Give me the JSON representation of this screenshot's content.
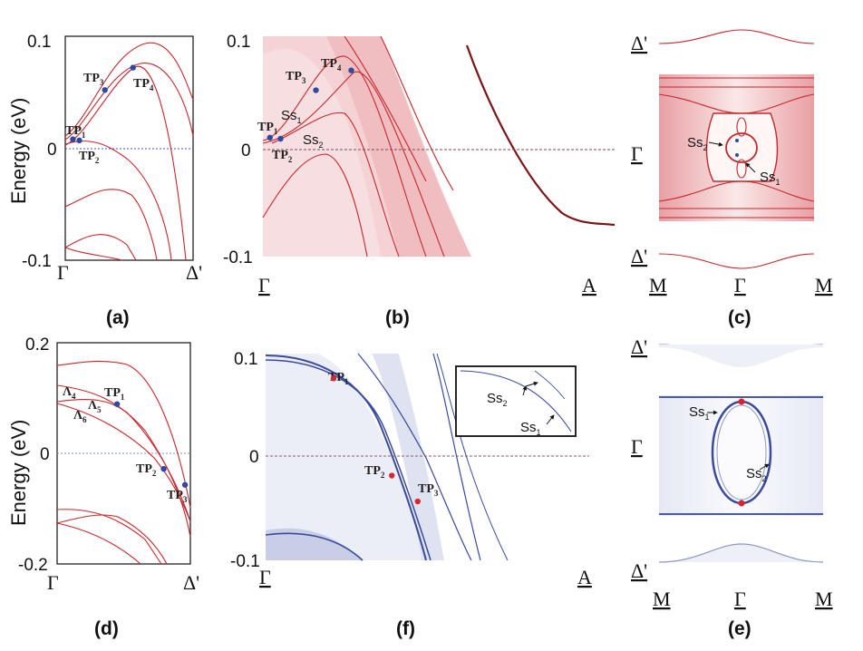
{
  "chart_data": [
    {
      "panel": "(a)",
      "type": "line",
      "ylabel": "Energy (eV)",
      "ylim": [
        -0.1,
        0.1
      ],
      "yticks": [
        "0.1",
        "0",
        "-0.1"
      ],
      "xticks": [
        "Γ",
        "Δ'"
      ],
      "fermi_level": 0,
      "points": [
        {
          "label": "TP",
          "sub": "1",
          "k": 0.06,
          "E": 0.008
        },
        {
          "label": "TP",
          "sub": "2",
          "k": 0.11,
          "E": 0.007
        },
        {
          "label": "TP",
          "sub": "3",
          "k": 0.31,
          "E": 0.052
        },
        {
          "label": "TP",
          "sub": "4",
          "k": 0.53,
          "E": 0.072
        }
      ],
      "colors": {
        "bands": "#c8262c",
        "points": "#2e4aa0",
        "fermi": "#3a5bc7"
      }
    },
    {
      "panel": "(b)",
      "type": "heatmap",
      "ylim": [
        -0.1,
        0.1
      ],
      "yticks": [
        "0.1",
        "0",
        "-0.1"
      ],
      "xticks": [
        "Γ",
        "A"
      ],
      "fermi_level": 0,
      "points": [
        {
          "label": "TP",
          "sub": "1",
          "k": 0.02,
          "E": 0.008
        },
        {
          "label": "TP",
          "sub": "2",
          "k": 0.05,
          "E": 0.007
        },
        {
          "label": "TP",
          "sub": "3",
          "k": 0.15,
          "E": 0.051
        },
        {
          "label": "TP",
          "sub": "4",
          "k": 0.25,
          "E": 0.069
        }
      ],
      "annotations": [
        {
          "label": "Ss",
          "sub": "1"
        },
        {
          "label": "Ss",
          "sub": "2"
        }
      ],
      "colors": {
        "spectral": "#c8262c"
      }
    },
    {
      "panel": "(c)",
      "type": "heatmap",
      "xticks": [
        "M",
        "Γ",
        "M"
      ],
      "yticks": [
        "Δ'",
        "Γ",
        "Δ'"
      ],
      "annotations": [
        {
          "label": "Ss",
          "sub": "2"
        },
        {
          "label": "Ss",
          "sub": "1"
        }
      ]
    },
    {
      "panel": "(d)",
      "type": "line",
      "ylabel": "Energy (eV)",
      "ylim": [
        -0.2,
        0.2
      ],
      "yticks": [
        "0.2",
        "0",
        "-0.2"
      ],
      "xticks": [
        "Γ",
        "Δ'"
      ],
      "fermi_level": 0,
      "band_labels": [
        {
          "label": "Λ",
          "sub": "4"
        },
        {
          "label": "Λ",
          "sub": "5"
        },
        {
          "label": "Λ",
          "sub": "6"
        }
      ],
      "points": [
        {
          "label": "TP",
          "sub": "1",
          "k": 0.45,
          "E": 0.089
        },
        {
          "label": "TP",
          "sub": "2",
          "k": 0.8,
          "E": -0.028
        },
        {
          "label": "TP",
          "sub": "3",
          "k": 0.96,
          "E": -0.057
        }
      ],
      "colors": {
        "bands": "#c8262c",
        "points": "#2e4aa0",
        "fermi": "#7f93d0"
      }
    },
    {
      "panel": "(f)",
      "type": "heatmap",
      "ylim": [
        -0.1,
        0.1
      ],
      "yticks": [
        "0.1",
        "0",
        "-0.1"
      ],
      "xticks": [
        "Γ",
        "A"
      ],
      "fermi_level": 0,
      "points": [
        {
          "label": "TP",
          "sub": "1",
          "k": 0.21,
          "E": 0.076
        },
        {
          "label": "TP",
          "sub": "2",
          "k": 0.39,
          "E": -0.018
        },
        {
          "label": "TP",
          "sub": "3",
          "k": 0.47,
          "E": -0.043
        }
      ],
      "inset_annotations": [
        {
          "label": "Ss",
          "sub": "2"
        },
        {
          "label": "Ss",
          "sub": "1"
        }
      ],
      "colors": {
        "spectral": "#3a4a9c",
        "points": "#d9262c"
      }
    },
    {
      "panel": "(e)",
      "type": "heatmap",
      "xticks": [
        "M",
        "Γ",
        "M"
      ],
      "yticks": [
        "Δ'",
        "Γ",
        "Δ'"
      ],
      "annotations": [
        {
          "label": "Ss",
          "sub": "1"
        },
        {
          "label": "Ss",
          "sub": "2"
        }
      ]
    }
  ]
}
